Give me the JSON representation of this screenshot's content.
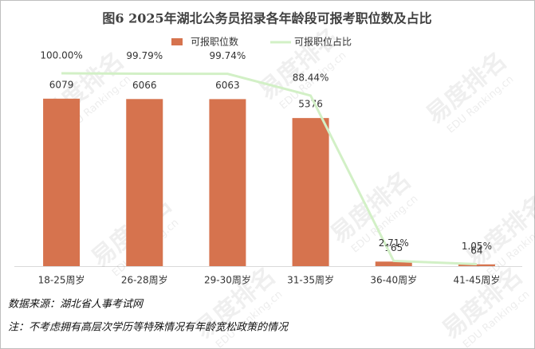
{
  "chart_data": {
    "type": "bar",
    "title": "图6  2025年湖北公务员招录各年龄段可报考职位数及占比",
    "categories": [
      "18-25周岁",
      "26-28周岁",
      "29-30周岁",
      "31-35周岁",
      "36-40周岁",
      "41-45周岁"
    ],
    "series": [
      {
        "name": "可报职位数",
        "type": "bar",
        "color": "#d6734e",
        "values": [
          6079,
          6066,
          6063,
          5376,
          165,
          64
        ]
      },
      {
        "name": "可报职位占比",
        "type": "line",
        "axis": "y2",
        "color": "#d2f0c6",
        "values": [
          100.0,
          99.79,
          99.74,
          88.44,
          2.71,
          1.05
        ],
        "value_labels": [
          "100.00%",
          "99.79%",
          "99.74%",
          "88.44%",
          "2.71%",
          "1.05%"
        ]
      }
    ],
    "ylim": [
      0,
      7000
    ],
    "y2lim": [
      0,
      100
    ],
    "legend": "top",
    "source": "数据来源：湖北省人事考试网",
    "note": "注：不考虑拥有高层次学历等特殊情况有年龄宽松政策的情况",
    "watermark": {
      "brand": "易度排名",
      "site": "EDU Ranking.cn"
    }
  }
}
